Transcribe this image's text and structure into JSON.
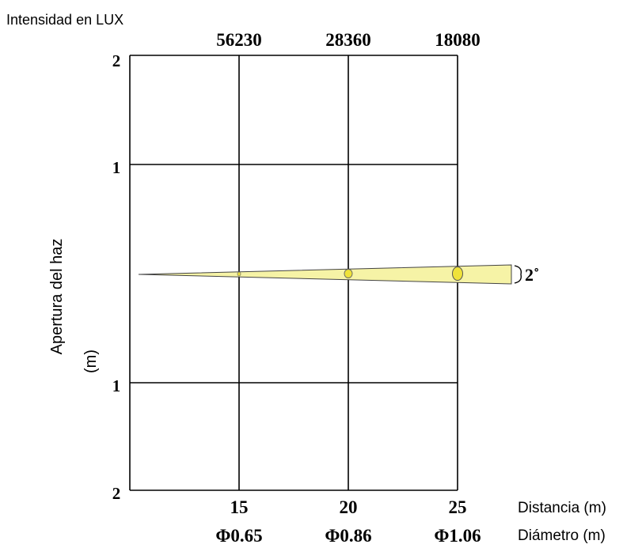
{
  "chart_data": {
    "type": "diagram",
    "intensity_label": "Intensidad en LUX",
    "y_axis_label_line1": "Apertura del haz",
    "y_axis_label_line2": "(m)",
    "distance_label": "Distancia (m)",
    "diameter_label": "Diámetro (m)",
    "beam_angle_label": "2˚",
    "y_ticks": [
      "2",
      "1",
      "1",
      "2"
    ],
    "columns": [
      {
        "distance": "15",
        "diameter": "Φ0.65",
        "lux": "56230"
      },
      {
        "distance": "20",
        "diameter": "Φ0.86",
        "lux": "28360"
      },
      {
        "distance": "25",
        "diameter": "Φ1.06",
        "lux": "18080"
      }
    ],
    "beam_color": "#f6f3a6",
    "spot_color": "#efe23a"
  }
}
